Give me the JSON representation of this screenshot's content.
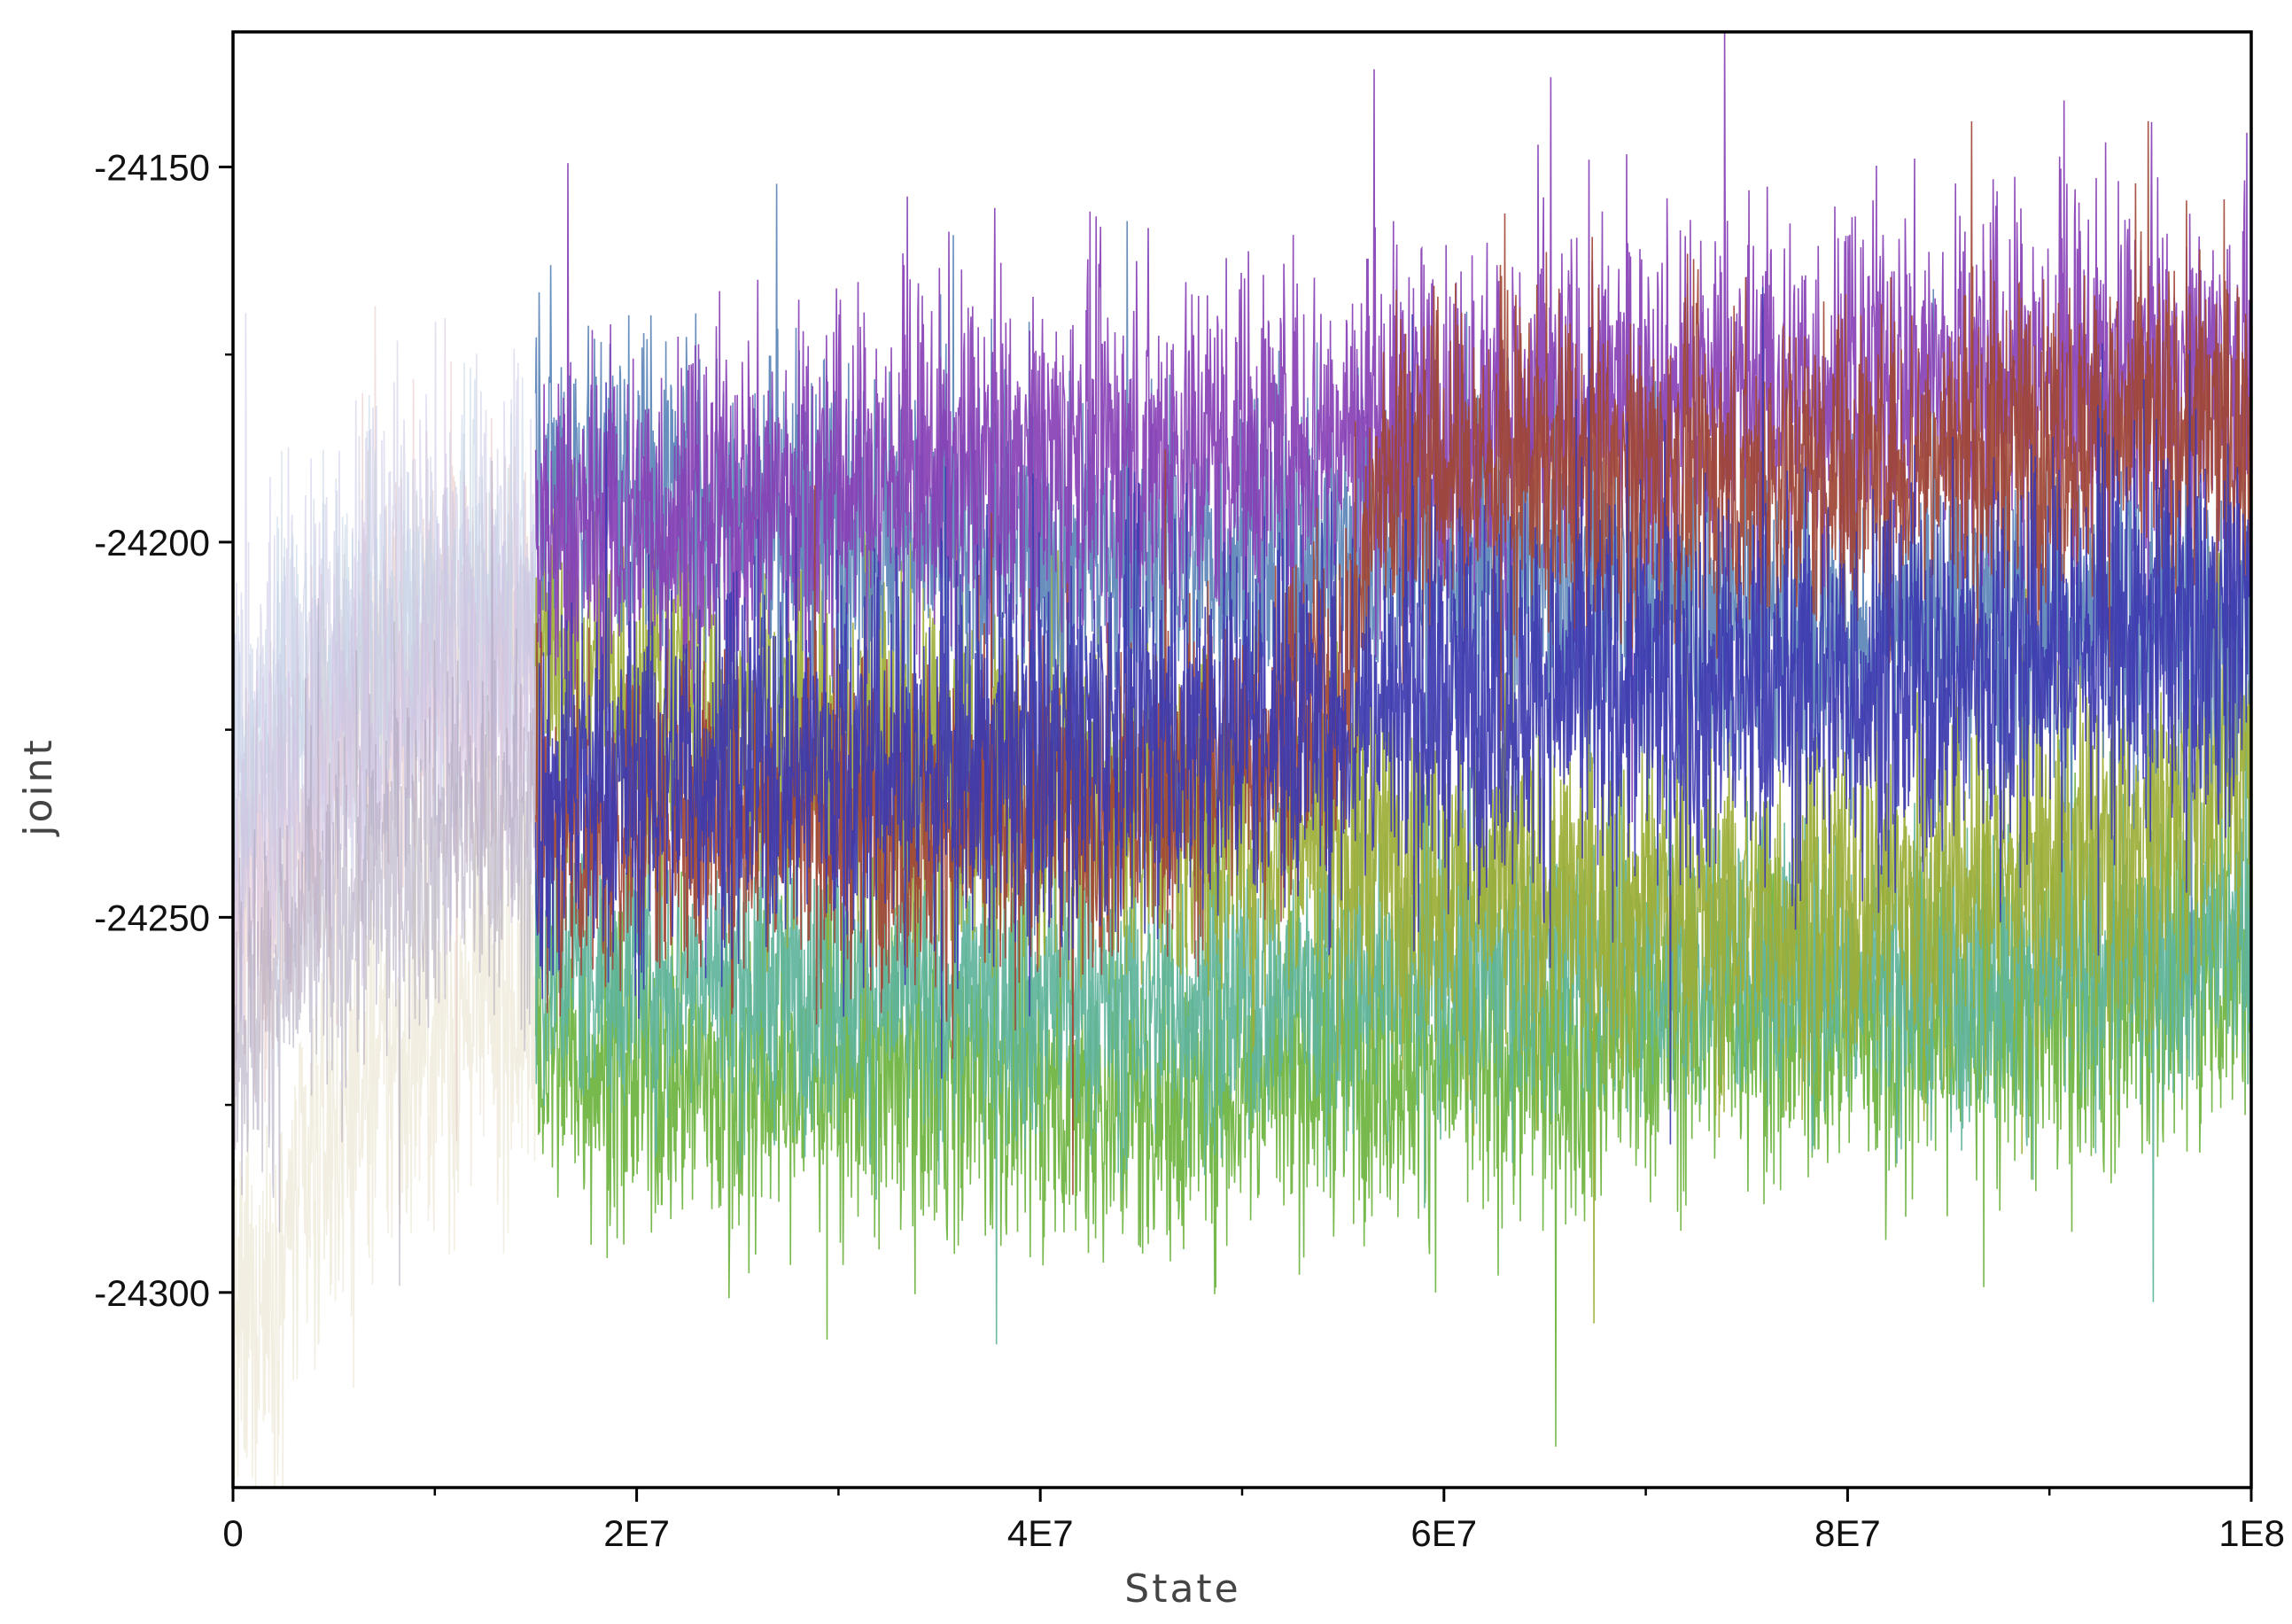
{
  "chart_data": {
    "type": "line",
    "title": "",
    "xlabel": "State",
    "ylabel": "joint",
    "xlim": [
      0,
      100000000
    ],
    "ylim": [
      -24326,
      -24132
    ],
    "x_ticks": [
      {
        "value": 0,
        "label": "0"
      },
      {
        "value": 20000000,
        "label": "2E7"
      },
      {
        "value": 40000000,
        "label": "4E7"
      },
      {
        "value": 60000000,
        "label": "6E7"
      },
      {
        "value": 80000000,
        "label": "8E7"
      },
      {
        "value": 100000000,
        "label": "1E8"
      }
    ],
    "x_minor_ticks": [
      10000000,
      30000000,
      50000000,
      70000000,
      90000000
    ],
    "y_ticks": [
      {
        "value": -24150,
        "label": "-24150"
      },
      {
        "value": -24200,
        "label": "-24200"
      },
      {
        "value": -24250,
        "label": "-24250"
      },
      {
        "value": -24300,
        "label": "-24300"
      }
    ],
    "y_minor_ticks": [
      -24175,
      -24225,
      -24275
    ],
    "grid": false,
    "legend": "none",
    "burn_in_end": 15000000,
    "series": [
      {
        "color": "#6cb33f",
        "x": [
          15000000,
          25000000,
          35000000,
          45000000,
          55000000,
          65000000,
          75000000,
          85000000,
          95000000,
          100000000
        ],
        "y": [
          -24268,
          -24272,
          -24270,
          -24275,
          -24268,
          -24270,
          -24262,
          -24265,
          -24260,
          -24255
        ],
        "sd": 11
      },
      {
        "color": "#5fb49c",
        "x": [
          15000000,
          25000000,
          35000000,
          45000000,
          55000000,
          65000000,
          75000000,
          85000000,
          95000000,
          100000000
        ],
        "y": [
          -24255,
          -24258,
          -24260,
          -24262,
          -24258,
          -24255,
          -24255,
          -24258,
          -24255,
          -24252
        ],
        "sd": 10
      },
      {
        "color": "#9dae36",
        "x": [
          15000000,
          25000000,
          35000000,
          45000000,
          55000000,
          65000000,
          75000000,
          85000000,
          95000000,
          100000000
        ],
        "y": [
          -24215,
          -24225,
          -24230,
          -24235,
          -24240,
          -24248,
          -24250,
          -24245,
          -24240,
          -24228
        ],
        "sd": 12
      },
      {
        "color": "#5b84b8",
        "x": [
          15000000,
          25000000,
          35000000,
          45000000,
          55000000,
          65000000,
          75000000,
          85000000,
          95000000,
          100000000
        ],
        "y": [
          -24190,
          -24195,
          -24200,
          -24203,
          -24200,
          -24205,
          -24210,
          -24210,
          -24210,
          -24212
        ],
        "sd": 11
      },
      {
        "color": "#8740b5",
        "x": [
          15000000,
          25000000,
          35000000,
          45000000,
          55000000,
          65000000,
          75000000,
          85000000,
          95000000,
          100000000
        ],
        "y": [
          -24200,
          -24195,
          -24190,
          -24188,
          -24185,
          -24183,
          -24180,
          -24178,
          -24178,
          -24178
        ],
        "sd": 12
      },
      {
        "color": "#a04535",
        "x": [
          15000000,
          25000000,
          35000000,
          45000000,
          55000000,
          57000000,
          65000000,
          75000000,
          85000000,
          95000000,
          100000000
        ],
        "y": [
          -24240,
          -24235,
          -24238,
          -24235,
          -24220,
          -24190,
          -24190,
          -24192,
          -24188,
          -24185,
          -24185
        ],
        "sd": 11
      },
      {
        "color": "#3d3ab0",
        "x": [
          15000000,
          25000000,
          35000000,
          45000000,
          55000000,
          65000000,
          75000000,
          85000000,
          95000000,
          100000000
        ],
        "y": [
          -24235,
          -24228,
          -24230,
          -24225,
          -24222,
          -24220,
          -24220,
          -24218,
          -24212,
          -24210
        ],
        "sd": 13
      }
    ],
    "burn_in_series": [
      {
        "color": "#e8e0c8",
        "x": [
          0,
          5000000,
          10000000,
          15000000
        ],
        "y": [
          -24310,
          -24278,
          -24265,
          -24260
        ],
        "sd": 13
      },
      {
        "color": "#e3c3c0",
        "x": [
          0,
          5000000,
          10000000,
          15000000
        ],
        "y": [
          -24250,
          -24225,
          -24215,
          -24215
        ],
        "sd": 14
      },
      {
        "color": "#c7c7e6",
        "x": [
          0,
          5000000,
          10000000,
          15000000
        ],
        "y": [
          -24230,
          -24210,
          -24205,
          -24205
        ],
        "sd": 14
      },
      {
        "color": "#c0d2e3",
        "x": [
          0,
          5000000,
          10000000,
          15000000
        ],
        "y": [
          -24235,
          -24220,
          -24212,
          -24210
        ],
        "sd": 13
      },
      {
        "color": "#d2bfe3",
        "x": [
          0,
          5000000,
          10000000,
          15000000
        ],
        "y": [
          -24245,
          -24228,
          -24222,
          -24220
        ],
        "sd": 13
      },
      {
        "color": "#a9a0b8",
        "x": [
          0,
          5000000,
          10000000,
          15000000
        ],
        "y": [
          -24265,
          -24250,
          -24240,
          -24238
        ],
        "sd": 12
      }
    ]
  }
}
